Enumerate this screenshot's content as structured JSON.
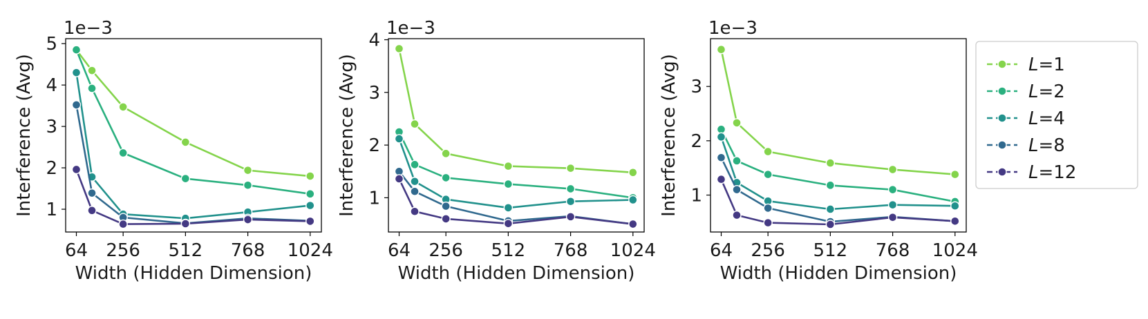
{
  "legend": {
    "entries": [
      {
        "var": "L",
        "value": "1",
        "color": "#84d44b"
      },
      {
        "var": "L",
        "value": "2",
        "color": "#2ab07f"
      },
      {
        "var": "L",
        "value": "4",
        "color": "#21918c"
      },
      {
        "var": "L",
        "value": "8",
        "color": "#30698e"
      },
      {
        "var": "L",
        "value": "12",
        "color": "#443983"
      }
    ],
    "placement": "right"
  },
  "chart_data": [
    {
      "type": "line",
      "xlabel": "Width (Hidden Dimension)",
      "ylabel": "Interference (Avg)",
      "offset_text": "1e−3",
      "x": [
        64,
        128,
        256,
        512,
        768,
        1024
      ],
      "xticks": [
        "64",
        "256",
        "512",
        "768",
        "1024"
      ],
      "xlim": [
        20,
        1070
      ],
      "yticks": [
        "1",
        "2",
        "3",
        "4",
        "5"
      ],
      "ylim": [
        0.45,
        5.12
      ],
      "grid": false,
      "series": [
        {
          "name": "L=1",
          "values": [
            4.85,
            4.35,
            3.47,
            2.62,
            1.94,
            1.8
          ]
        },
        {
          "name": "L=2",
          "values": [
            4.85,
            3.92,
            2.36,
            1.74,
            1.58,
            1.37
          ]
        },
        {
          "name": "L=4",
          "values": [
            4.3,
            1.78,
            0.88,
            0.78,
            0.93,
            1.09
          ]
        },
        {
          "name": "L=8",
          "values": [
            3.52,
            1.39,
            0.8,
            0.66,
            0.78,
            0.72
          ]
        },
        {
          "name": "L=12",
          "values": [
            1.96,
            0.97,
            0.64,
            0.65,
            0.75,
            0.71
          ]
        }
      ]
    },
    {
      "type": "line",
      "xlabel": "Width (Hidden Dimension)",
      "ylabel": "Interference (Avg)",
      "offset_text": "1e−3",
      "x": [
        64,
        128,
        256,
        512,
        768,
        1024
      ],
      "xticks": [
        "64",
        "256",
        "512",
        "768",
        "1024"
      ],
      "xlim": [
        20,
        1070
      ],
      "yticks": [
        "1",
        "2",
        "3",
        "4"
      ],
      "ylim": [
        0.35,
        4.02
      ],
      "grid": false,
      "series": [
        {
          "name": "L=1",
          "values": [
            3.83,
            2.4,
            1.84,
            1.6,
            1.56,
            1.48
          ]
        },
        {
          "name": "L=2",
          "values": [
            2.25,
            1.63,
            1.38,
            1.26,
            1.17,
            1.0
          ]
        },
        {
          "name": "L=4",
          "values": [
            2.12,
            1.31,
            0.97,
            0.81,
            0.93,
            0.96
          ]
        },
        {
          "name": "L=8",
          "values": [
            1.5,
            1.12,
            0.84,
            0.56,
            0.65,
            0.5
          ]
        },
        {
          "name": "L=12",
          "values": [
            1.36,
            0.74,
            0.6,
            0.51,
            0.64,
            0.5
          ]
        }
      ]
    },
    {
      "type": "line",
      "xlabel": "Width (Hidden Dimension)",
      "ylabel": "Interference (Avg)",
      "offset_text": "1e−3",
      "x": [
        64,
        128,
        256,
        512,
        768,
        1024
      ],
      "xticks": [
        "64",
        "256",
        "512",
        "768",
        "1024"
      ],
      "xlim": [
        20,
        1070
      ],
      "yticks": [
        "1",
        "2",
        "3"
      ],
      "ylim": [
        0.32,
        3.88
      ],
      "grid": false,
      "series": [
        {
          "name": "L=1",
          "values": [
            3.68,
            2.33,
            1.8,
            1.59,
            1.47,
            1.38
          ]
        },
        {
          "name": "L=2",
          "values": [
            2.21,
            1.63,
            1.38,
            1.18,
            1.1,
            0.88
          ]
        },
        {
          "name": "L=4",
          "values": [
            2.07,
            1.23,
            0.89,
            0.74,
            0.82,
            0.8
          ]
        },
        {
          "name": "L=8",
          "values": [
            1.69,
            1.1,
            0.76,
            0.51,
            0.6,
            0.52
          ]
        },
        {
          "name": "L=12",
          "values": [
            1.29,
            0.63,
            0.49,
            0.46,
            0.59,
            0.52
          ]
        }
      ]
    }
  ]
}
